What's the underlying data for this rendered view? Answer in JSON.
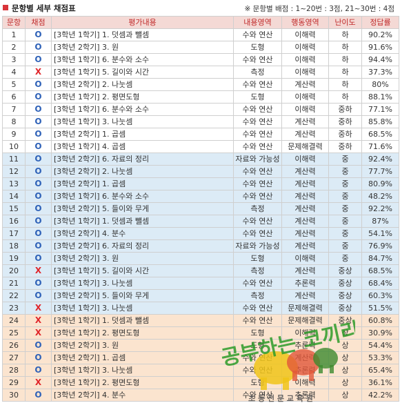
{
  "header": {
    "title": "문항별 세부 채점표",
    "note": "※ 문항별 배점 : 1~20번 : 3점,   21~30번 : 4점"
  },
  "columns": [
    "문항",
    "채점",
    "평가내용",
    "내용영역",
    "행동영역",
    "난이도",
    "정답률"
  ],
  "marks": {
    "correct": "O",
    "wrong": "X"
  },
  "rows": [
    {
      "no": "1",
      "mark": "O",
      "content": "[3학년 1학기] 1. 덧셈과 뺄셈",
      "domain": "수와 연산",
      "behavior": "이해력",
      "level": "하",
      "rate": "90.2%"
    },
    {
      "no": "2",
      "mark": "O",
      "content": "[3학년 2학기] 3. 원",
      "domain": "도형",
      "behavior": "이해력",
      "level": "하",
      "rate": "91.6%"
    },
    {
      "no": "3",
      "mark": "O",
      "content": "[3학년 1학기] 6. 분수와 소수",
      "domain": "수와 연산",
      "behavior": "이해력",
      "level": "하",
      "rate": "94.4%"
    },
    {
      "no": "4",
      "mark": "X",
      "content": "[3학년 1학기] 5. 길이와 시간",
      "domain": "측정",
      "behavior": "이해력",
      "level": "하",
      "rate": "37.3%"
    },
    {
      "no": "5",
      "mark": "O",
      "content": "[3학년 2학기] 2. 나눗셈",
      "domain": "수와 연산",
      "behavior": "계산력",
      "level": "하",
      "rate": "80%"
    },
    {
      "no": "6",
      "mark": "O",
      "content": "[3학년 1학기] 2. 평면도형",
      "domain": "도형",
      "behavior": "이해력",
      "level": "하",
      "rate": "88.1%"
    },
    {
      "no": "7",
      "mark": "O",
      "content": "[3학년 1학기] 6. 분수와 소수",
      "domain": "수와 연산",
      "behavior": "이해력",
      "level": "중하",
      "rate": "77.1%"
    },
    {
      "no": "8",
      "mark": "O",
      "content": "[3학년 1학기] 3. 나눗셈",
      "domain": "수와 연산",
      "behavior": "계산력",
      "level": "중하",
      "rate": "85.8%"
    },
    {
      "no": "9",
      "mark": "O",
      "content": "[3학년 2학기] 1. 곱셈",
      "domain": "수와 연산",
      "behavior": "계산력",
      "level": "중하",
      "rate": "68.5%"
    },
    {
      "no": "10",
      "mark": "O",
      "content": "[3학년 1학기] 4. 곱셈",
      "domain": "수와 연산",
      "behavior": "문제해결력",
      "level": "중하",
      "rate": "71.6%"
    },
    {
      "no": "11",
      "mark": "O",
      "content": "[3학년 2학기] 6. 자료의 정리",
      "domain": "자료와 가능성",
      "behavior": "이해력",
      "level": "중",
      "rate": "92.4%"
    },
    {
      "no": "12",
      "mark": "O",
      "content": "[3학년 2학기] 2. 나눗셈",
      "domain": "수와 연산",
      "behavior": "계산력",
      "level": "중",
      "rate": "77.7%"
    },
    {
      "no": "13",
      "mark": "O",
      "content": "[3학년 2학기] 1. 곱셈",
      "domain": "수와 연산",
      "behavior": "계산력",
      "level": "중",
      "rate": "80.9%"
    },
    {
      "no": "14",
      "mark": "O",
      "content": "[3학년 1학기] 6. 분수와 소수",
      "domain": "수와 연산",
      "behavior": "계산력",
      "level": "중",
      "rate": "48.2%"
    },
    {
      "no": "15",
      "mark": "O",
      "content": "[3학년 2학기] 5. 들이와 무게",
      "domain": "측정",
      "behavior": "계산력",
      "level": "중",
      "rate": "92.2%"
    },
    {
      "no": "16",
      "mark": "O",
      "content": "[3학년 1학기] 1. 덧셈과 뺄셈",
      "domain": "수와 연산",
      "behavior": "계산력",
      "level": "중",
      "rate": "87%"
    },
    {
      "no": "17",
      "mark": "O",
      "content": "[3학년 2학기] 4. 분수",
      "domain": "수와 연산",
      "behavior": "계산력",
      "level": "중",
      "rate": "54.1%"
    },
    {
      "no": "18",
      "mark": "O",
      "content": "[3학년 2학기] 6. 자료의 정리",
      "domain": "자료와 가능성",
      "behavior": "계산력",
      "level": "중",
      "rate": "76.9%"
    },
    {
      "no": "19",
      "mark": "O",
      "content": "[3학년 2학기] 3. 원",
      "domain": "도형",
      "behavior": "이해력",
      "level": "중",
      "rate": "84.7%"
    },
    {
      "no": "20",
      "mark": "X",
      "content": "[3학년 1학기] 5. 길이와 시간",
      "domain": "측정",
      "behavior": "계산력",
      "level": "중상",
      "rate": "68.5%"
    },
    {
      "no": "21",
      "mark": "O",
      "content": "[3학년 1학기] 3. 나눗셈",
      "domain": "수와 연산",
      "behavior": "추론력",
      "level": "중상",
      "rate": "68.4%"
    },
    {
      "no": "22",
      "mark": "O",
      "content": "[3학년 2학기] 5. 들이와 무게",
      "domain": "측정",
      "behavior": "계산력",
      "level": "중상",
      "rate": "60.3%"
    },
    {
      "no": "23",
      "mark": "X",
      "content": "[3학년 1학기] 3. 나눗셈",
      "domain": "수와 연산",
      "behavior": "문제해결력",
      "level": "중상",
      "rate": "51.5%"
    },
    {
      "no": "24",
      "mark": "X",
      "content": "[3학년 1학기] 1. 덧셈과 뺄셈",
      "domain": "수와 연산",
      "behavior": "문제해결력",
      "level": "중상",
      "rate": "60.8%"
    },
    {
      "no": "25",
      "mark": "X",
      "content": "[3학년 1학기] 2. 평면도형",
      "domain": "도형",
      "behavior": "이해력",
      "level": "상",
      "rate": "30.9%"
    },
    {
      "no": "26",
      "mark": "O",
      "content": "[3학년 2학기] 3. 원",
      "domain": "도형",
      "behavior": "추론력",
      "level": "상",
      "rate": "54.4%"
    },
    {
      "no": "27",
      "mark": "O",
      "content": "[3학년 2학기] 1. 곱셈",
      "domain": "수와 연산",
      "behavior": "계산력",
      "level": "상",
      "rate": "53.3%"
    },
    {
      "no": "28",
      "mark": "O",
      "content": "[3학년 1학기] 3. 나눗셈",
      "domain": "수와 연산",
      "behavior": "추론력",
      "level": "상",
      "rate": "65.4%"
    },
    {
      "no": "29",
      "mark": "X",
      "content": "[3학년 1학기] 2. 평면도형",
      "domain": "도형",
      "behavior": "이해력",
      "level": "상",
      "rate": "36.1%"
    },
    {
      "no": "30",
      "mark": "O",
      "content": "[3학년 2학기] 4. 분수",
      "domain": "수와 연산",
      "behavior": "추론력",
      "level": "상",
      "rate": "42.2%"
    }
  ],
  "watermark": {
    "text_main": "공부하는 코끼리",
    "text_sub": "초 등 전 문 교 육 원",
    "colors": [
      "#f0c419",
      "#e2573a",
      "#3d8a2e"
    ]
  }
}
